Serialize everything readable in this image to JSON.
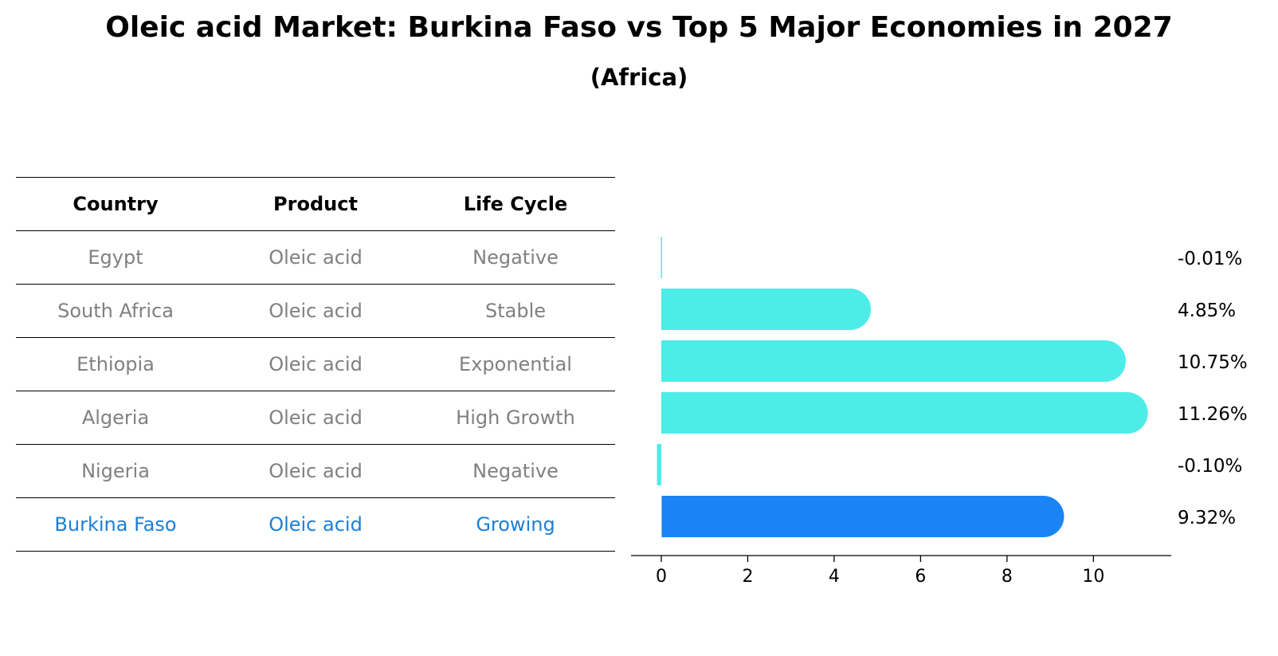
{
  "title": "Oleic acid Market: Burkina Faso vs Top 5 Major Economies in 2027",
  "subtitle": "(Africa)",
  "table": {
    "headers": [
      "Country",
      "Product",
      "Life Cycle"
    ],
    "rows": [
      {
        "country": "Egypt",
        "product": "Oleic acid",
        "life_cycle": "Negative"
      },
      {
        "country": "South Africa",
        "product": "Oleic acid",
        "life_cycle": "Stable"
      },
      {
        "country": "Ethiopia",
        "product": "Oleic acid",
        "life_cycle": "Exponential"
      },
      {
        "country": "Algeria",
        "product": "Oleic acid",
        "life_cycle": "High Growth"
      },
      {
        "country": "Nigeria",
        "product": "Oleic acid",
        "life_cycle": "Negative"
      },
      {
        "country": "Burkina Faso",
        "product": "Oleic acid",
        "life_cycle": "Growing"
      }
    ]
  },
  "colors": {
    "bar": "#4dece9",
    "highlight": "#1a84f5",
    "highlight_text": "#1a7fd6",
    "muted_text": "#808080"
  },
  "chart_data": {
    "type": "bar",
    "orientation": "horizontal",
    "categories": [
      "Egypt",
      "South Africa",
      "Ethiopia",
      "Algeria",
      "Nigeria",
      "Burkina Faso"
    ],
    "values": [
      -0.01,
      4.85,
      10.75,
      11.26,
      -0.1,
      9.32
    ],
    "value_labels": [
      "-0.01%",
      "4.85%",
      "10.75%",
      "11.26%",
      "-0.10%",
      "9.32%"
    ],
    "highlight": "Burkina Faso",
    "xlim": [
      -0.7,
      11.8
    ],
    "xticks": [
      0,
      2,
      4,
      6,
      8,
      10
    ],
    "xlabel": "",
    "ylabel": ""
  }
}
